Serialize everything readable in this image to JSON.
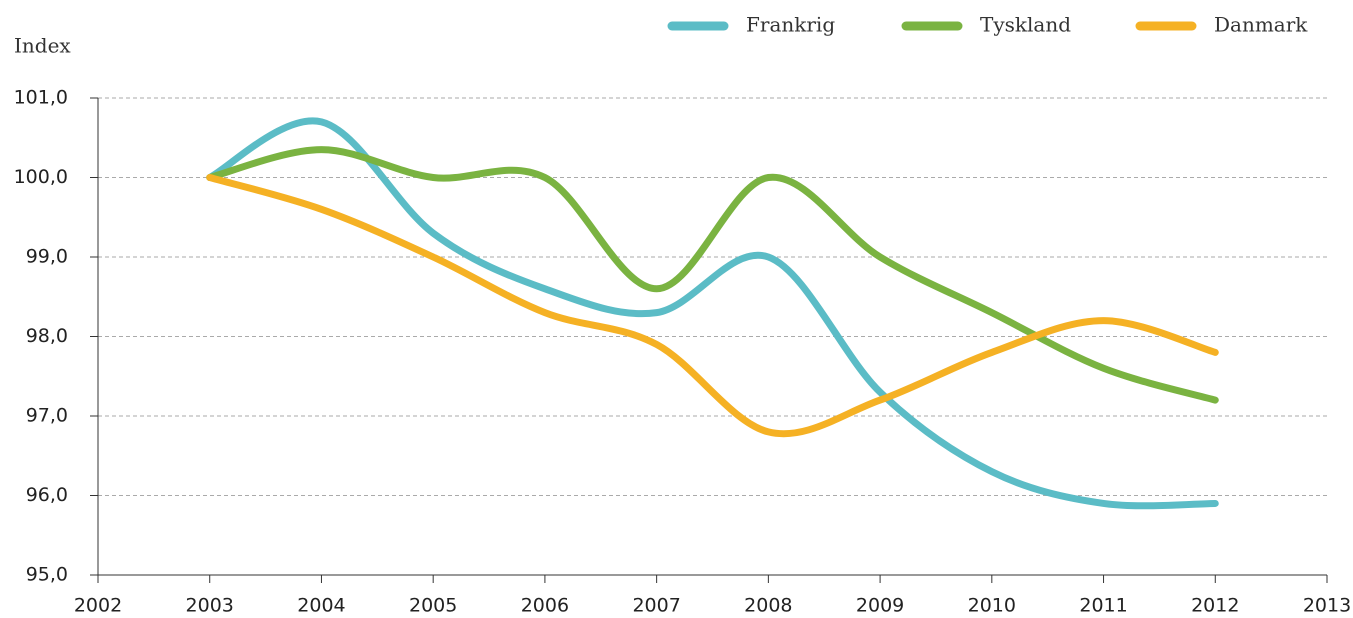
{
  "chart_data": {
    "type": "line",
    "ylabel": "Index",
    "x": [
      2003,
      2004,
      2005,
      2006,
      2007,
      2008,
      2009,
      2010,
      2011,
      2012
    ],
    "series": [
      {
        "name": "Frankrig",
        "color": "#5bbcc6",
        "values": [
          100.0,
          100.7,
          99.3,
          98.6,
          98.3,
          99.0,
          97.3,
          96.3,
          95.9,
          95.9
        ]
      },
      {
        "name": "Tyskland",
        "color": "#7ab341",
        "values": [
          100.0,
          100.35,
          100.0,
          100.0,
          98.6,
          100.0,
          99.0,
          98.3,
          97.6,
          97.2
        ]
      },
      {
        "name": "Danmark",
        "color": "#f5b124",
        "values": [
          100.0,
          99.6,
          99.0,
          98.3,
          97.9,
          96.8,
          97.2,
          97.8,
          98.2,
          97.8
        ]
      }
    ],
    "xlim": [
      2002,
      2013
    ],
    "xticks": [
      2002,
      2003,
      2004,
      2005,
      2006,
      2007,
      2008,
      2009,
      2010,
      2011,
      2012,
      2013
    ],
    "ylim": [
      95,
      101
    ],
    "yticks": [
      {
        "value": 95,
        "label": "95,0"
      },
      {
        "value": 96,
        "label": "96,0"
      },
      {
        "value": 97,
        "label": "97,0"
      },
      {
        "value": 98,
        "label": "98,0"
      },
      {
        "value": 99,
        "label": "99,0"
      },
      {
        "value": 100,
        "label": "100,0"
      },
      {
        "value": 101,
        "label": "101,0"
      }
    ],
    "grid": true,
    "legend": "top-right"
  }
}
